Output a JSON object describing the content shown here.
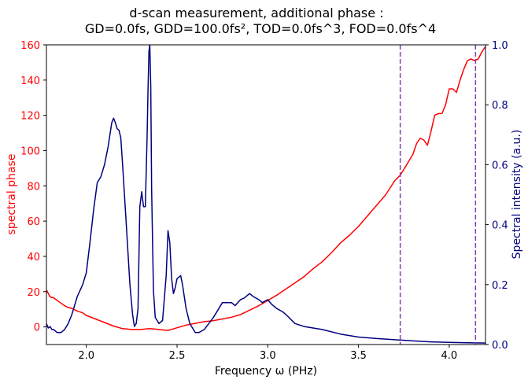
{
  "chart_data": {
    "type": "line",
    "title_line1": "d-scan measurement, additional phase :",
    "title_line2": "GD=0.0fs, GDD=100.0fs², TOD=0.0fs^3, FOD=0.0fs^4",
    "xlabel": "Frequency ω (PHz)",
    "ylabel_left": "spectral phase",
    "ylabel_right": "Spectral intensity (a.u.)",
    "xlim": [
      1.78,
      4.2
    ],
    "ylim_left": [
      -10,
      160
    ],
    "ylim_right": [
      0,
      1.0
    ],
    "x_ticks": [
      "2.0",
      "2.5",
      "3.0",
      "3.5",
      "4.0"
    ],
    "y_left_ticks": [
      "0",
      "20",
      "40",
      "60",
      "80",
      "100",
      "120",
      "140",
      "160"
    ],
    "y_right_ticks": [
      "0.0",
      "0.2",
      "0.4",
      "0.6",
      "0.8",
      "1.0"
    ],
    "grid": false,
    "colors": {
      "phase": "#ff0000",
      "intensity": "#00007f",
      "markers": "#8040b0",
      "left_axis": "#ff0000",
      "right_axis": "#00007f"
    },
    "vertical_markers_x": [
      3.73,
      4.145
    ],
    "series": [
      {
        "axis": "left",
        "x": [
          1.78,
          1.8,
          1.82,
          1.84,
          1.86,
          1.88,
          1.9,
          1.92,
          1.95,
          1.98,
          2.0,
          2.05,
          2.1,
          2.15,
          2.2,
          2.25,
          2.3,
          2.35,
          2.4,
          2.45,
          2.5,
          2.55,
          2.6,
          2.65,
          2.7,
          2.75,
          2.8,
          2.85,
          2.9,
          2.95,
          3.0,
          3.05,
          3.1,
          3.15,
          3.2,
          3.25,
          3.3,
          3.35,
          3.4,
          3.45,
          3.5,
          3.55,
          3.6,
          3.65,
          3.7,
          3.73,
          3.76,
          3.8,
          3.82,
          3.84,
          3.86,
          3.88,
          3.9,
          3.92,
          3.94,
          3.96,
          3.98,
          4.0,
          4.02,
          4.04,
          4.06,
          4.08,
          4.1,
          4.12,
          4.14,
          4.16,
          4.18,
          4.2
        ],
        "y": [
          21,
          17,
          16.5,
          15,
          13.5,
          12,
          11,
          10.5,
          9,
          8,
          6.5,
          4.5,
          2.5,
          0.5,
          -1,
          -1.5,
          -1.5,
          -1,
          -1.5,
          -2,
          -0.5,
          1,
          2,
          3,
          3.5,
          4.5,
          5.5,
          7,
          9.5,
          12,
          15,
          18,
          21.5,
          25,
          28.5,
          33,
          37,
          42,
          47.5,
          52,
          57,
          63,
          69,
          75,
          83,
          86,
          91,
          98,
          104,
          107,
          106,
          103,
          111,
          120,
          121,
          121,
          126,
          135,
          135,
          133,
          140,
          146,
          151,
          152,
          151,
          152,
          156,
          159
        ]
      },
      {
        "axis": "right",
        "x": [
          1.78,
          1.79,
          1.8,
          1.81,
          1.82,
          1.83,
          1.84,
          1.85,
          1.86,
          1.87,
          1.88,
          1.9,
          1.92,
          1.95,
          1.98,
          2.0,
          2.02,
          2.04,
          2.06,
          2.08,
          2.1,
          2.12,
          2.14,
          2.15,
          2.16,
          2.17,
          2.18,
          2.19,
          2.2,
          2.22,
          2.24,
          2.255,
          2.265,
          2.275,
          2.285,
          2.295,
          2.305,
          2.315,
          2.325,
          2.335,
          2.34,
          2.345,
          2.35,
          2.355,
          2.36,
          2.365,
          2.37,
          2.38,
          2.39,
          2.4,
          2.42,
          2.44,
          2.45,
          2.46,
          2.47,
          2.48,
          2.49,
          2.5,
          2.52,
          2.53,
          2.55,
          2.57,
          2.6,
          2.62,
          2.65,
          2.7,
          2.75,
          2.8,
          2.82,
          2.85,
          2.87,
          2.9,
          2.92,
          2.95,
          2.97,
          3.0,
          3.02,
          3.05,
          3.08,
          3.1,
          3.15,
          3.2,
          3.3,
          3.4,
          3.5,
          3.6,
          3.7,
          3.8,
          3.9,
          4.0,
          4.1,
          4.2
        ],
        "y": [
          0.07,
          0.055,
          0.06,
          0.05,
          0.05,
          0.045,
          0.04,
          0.04,
          0.04,
          0.045,
          0.05,
          0.07,
          0.1,
          0.16,
          0.2,
          0.24,
          0.34,
          0.45,
          0.54,
          0.56,
          0.6,
          0.66,
          0.74,
          0.755,
          0.74,
          0.72,
          0.715,
          0.69,
          0.6,
          0.4,
          0.2,
          0.1,
          0.06,
          0.07,
          0.12,
          0.46,
          0.51,
          0.46,
          0.46,
          0.7,
          0.85,
          0.98,
          1.0,
          0.86,
          0.52,
          0.34,
          0.18,
          0.09,
          0.08,
          0.07,
          0.08,
          0.23,
          0.38,
          0.34,
          0.22,
          0.17,
          0.19,
          0.22,
          0.23,
          0.2,
          0.12,
          0.07,
          0.04,
          0.04,
          0.05,
          0.09,
          0.14,
          0.14,
          0.13,
          0.15,
          0.155,
          0.17,
          0.16,
          0.15,
          0.14,
          0.15,
          0.135,
          0.12,
          0.11,
          0.1,
          0.07,
          0.06,
          0.05,
          0.035,
          0.025,
          0.02,
          0.016,
          0.012,
          0.009,
          0.007,
          0.006,
          0.005
        ]
      }
    ]
  }
}
